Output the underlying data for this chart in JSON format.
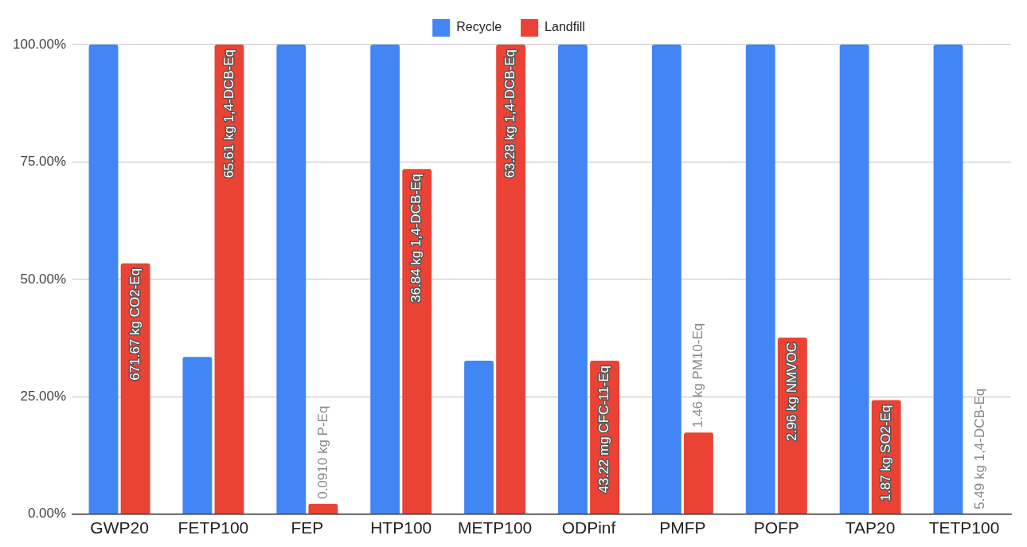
{
  "chart_data": {
    "type": "bar",
    "categories": [
      "GWP20",
      "FETP100",
      "FEP",
      "HTP100",
      "METP100",
      "ODPinf",
      "PMFP",
      "POFP",
      "TAP20",
      "TETP100"
    ],
    "series": [
      {
        "name": "Recycle",
        "color": "#4285f4",
        "values": [
          100,
          33.5,
          100,
          100,
          32.7,
          100,
          100,
          100,
          100,
          100
        ]
      },
      {
        "name": "Landfill",
        "color": "#ea4335",
        "values": [
          53.4,
          100,
          2.2,
          73.5,
          100,
          32.7,
          17.4,
          37.6,
          24.3,
          0
        ]
      }
    ],
    "annotations": [
      {
        "text": "671.67 kg CO2-Eq",
        "x": "GWP20",
        "y": 53.4
      },
      {
        "text": "65.61 kg 1,4-DCB-Eq",
        "x": "FETP100",
        "y": 100
      },
      {
        "text": "0.0910 kg P-Eq",
        "x": "FEP",
        "y": 2.2
      },
      {
        "text": "36.84 kg 1,4-DCB-Eq",
        "x": "HTP100",
        "y": 73.5
      },
      {
        "text": "63.28 kg 1,4-DCB-Eq",
        "x": "METP100",
        "y": 100
      },
      {
        "text": "43.22 mg CFC-11-Eq",
        "x": "ODPinf",
        "y": 32.7
      },
      {
        "text": "1.46 kg PM10-Eq",
        "x": "PMFP",
        "y": 17.4
      },
      {
        "text": "2.96 kg NMVOC",
        "x": "POFP",
        "y": 37.6
      },
      {
        "text": "1.87 kg SO2-Eq",
        "x": "TAP20",
        "y": 24.3
      },
      {
        "text": "5.49 kg 1,4-DCB-Eq",
        "x": "TETP100",
        "y": 0
      }
    ],
    "ylim": [
      0,
      100
    ],
    "yticks": [
      {
        "value": 0,
        "label": "0.00%"
      },
      {
        "value": 25,
        "label": "25.00%"
      },
      {
        "value": 50,
        "label": "50.00%"
      },
      {
        "value": 75,
        "label": "75.00%"
      },
      {
        "value": 100,
        "label": "100.00%"
      }
    ],
    "grid": "y",
    "legend": "top"
  }
}
